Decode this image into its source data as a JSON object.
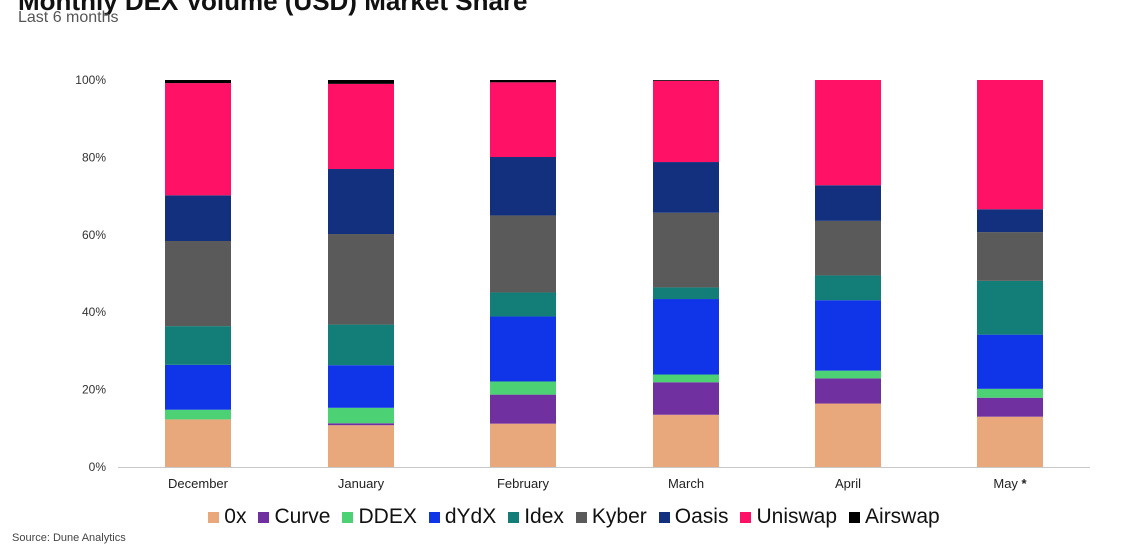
{
  "header": {
    "title": "Monthly DEX Volume (USD) Market Share",
    "subtitle": "Last 6 months",
    "top_right": "",
    "source": "Source: Dune Analytics"
  },
  "colors": {
    "0x": "#E8A87C",
    "Curve": "#7030A0",
    "DDEX": "#4CD174",
    "dYdX": "#1034E8",
    "Idex": "#137E78",
    "Kyber": "#5A5A5A",
    "Oasis": "#13307E",
    "Uniswap": "#FF1166",
    "Airswap": "#000000"
  },
  "chart_data": {
    "type": "bar",
    "stacked": true,
    "percent": true,
    "categories": [
      "December",
      "January",
      "February",
      "March",
      "April",
      "May"
    ],
    "category_marks": [
      "",
      "",
      "",
      "",
      "",
      "*"
    ],
    "series": [
      {
        "name": "0x",
        "values": [
          12.3,
          10.8,
          11.2,
          13.5,
          16.4,
          13.0
        ]
      },
      {
        "name": "Curve",
        "values": [
          0.0,
          0.5,
          7.5,
          8.4,
          6.5,
          4.9
        ]
      },
      {
        "name": "DDEX",
        "values": [
          2.5,
          4.0,
          3.4,
          2.0,
          2.0,
          2.3
        ]
      },
      {
        "name": "dYdX",
        "values": [
          11.6,
          11.0,
          16.8,
          19.5,
          18.2,
          14.0
        ]
      },
      {
        "name": "Idex",
        "values": [
          10.0,
          10.5,
          6.2,
          3.0,
          6.4,
          13.9
        ]
      },
      {
        "name": "Kyber",
        "values": [
          22.0,
          23.4,
          19.9,
          19.3,
          14.1,
          12.6
        ]
      },
      {
        "name": "Oasis",
        "values": [
          11.8,
          16.8,
          15.1,
          13.1,
          9.2,
          5.9
        ]
      },
      {
        "name": "Uniswap",
        "values": [
          29.0,
          22.0,
          19.3,
          21.0,
          27.2,
          33.4
        ]
      },
      {
        "name": "Airswap",
        "values": [
          0.8,
          1.0,
          0.6,
          0.2,
          0.0,
          0.0
        ]
      }
    ],
    "yticks": [
      "0%",
      "20%",
      "40%",
      "60%",
      "80%",
      "100%"
    ],
    "ylim": [
      0,
      100
    ],
    "grid": false,
    "legend_position": "bottom"
  }
}
